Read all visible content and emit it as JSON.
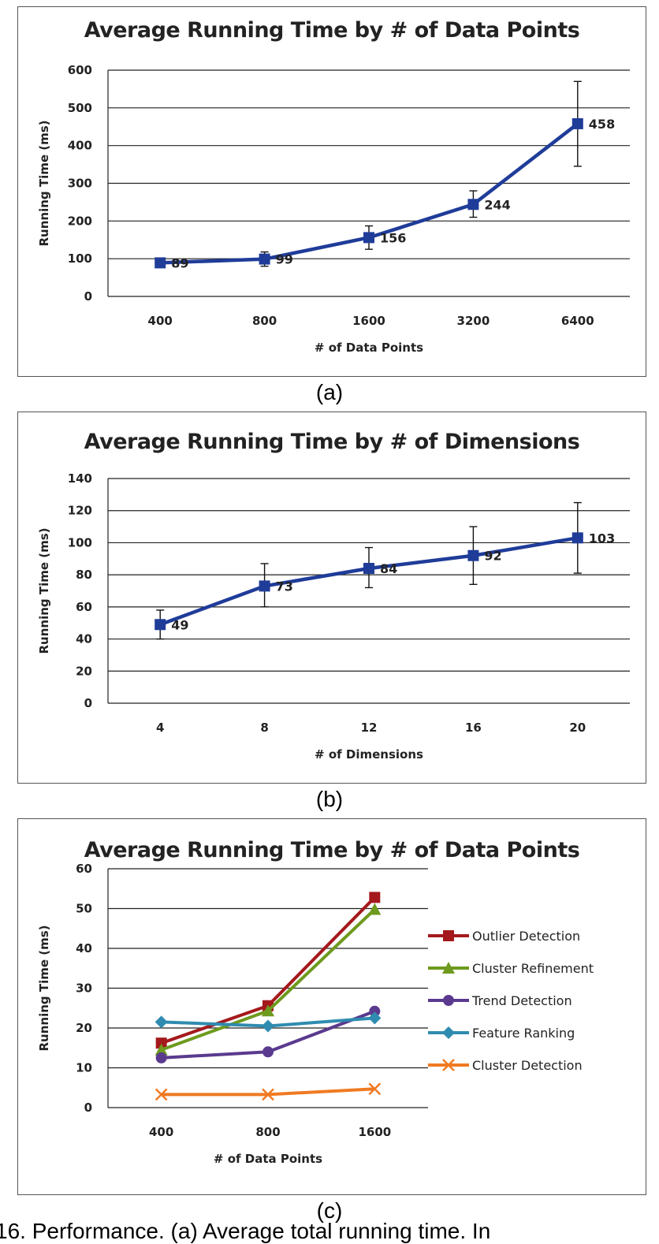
{
  "chart_data": [
    {
      "type": "line",
      "panel": "a",
      "title": "Average Running Time by # of Data Points",
      "xlabel": "# of Data Points",
      "ylabel": "Running Time (ms)",
      "categories": [
        "400",
        "800",
        "1600",
        "3200",
        "6400"
      ],
      "ylim": [
        0,
        600
      ],
      "yticks": [
        0,
        100,
        200,
        300,
        400,
        500,
        600
      ],
      "grid": true,
      "series": [
        {
          "values": [
            89,
            99,
            156,
            244,
            458
          ],
          "data_labels": [
            "89",
            "99",
            "156",
            "244",
            "458"
          ],
          "error_low": [
            80,
            80,
            125,
            210,
            345
          ],
          "error_high": [
            98,
            118,
            187,
            280,
            570
          ],
          "color": "#1F3C99",
          "marker": "square"
        }
      ]
    },
    {
      "type": "line",
      "panel": "b",
      "title": "Average Running Time by # of Dimensions",
      "xlabel": "# of Dimensions",
      "ylabel": "Running Time (ms)",
      "categories": [
        "4",
        "8",
        "12",
        "16",
        "20"
      ],
      "ylim": [
        0,
        140
      ],
      "yticks": [
        0,
        20,
        40,
        60,
        80,
        100,
        120,
        140
      ],
      "grid": true,
      "series": [
        {
          "values": [
            49,
            73,
            84,
            92,
            103
          ],
          "data_labels": [
            "49",
            "73",
            "84",
            "92",
            "103"
          ],
          "error_low": [
            40,
            60,
            72,
            74,
            81
          ],
          "error_high": [
            58,
            87,
            97,
            110,
            125
          ],
          "color": "#1F3C99",
          "marker": "square"
        }
      ]
    },
    {
      "type": "line",
      "panel": "c",
      "title": "Average Running Time by # of Data Points",
      "xlabel": "# of Data Points",
      "ylabel": "Running Time (ms)",
      "categories": [
        "400",
        "800",
        "1600"
      ],
      "ylim": [
        0,
        60
      ],
      "yticks": [
        0,
        10,
        20,
        30,
        40,
        50,
        60
      ],
      "grid": true,
      "legend": "right",
      "series": [
        {
          "name": "Outlier Detection",
          "values": [
            16.2,
            25.6,
            52.8
          ],
          "color": "#A4191C",
          "marker": "square"
        },
        {
          "name": "Cluster Refinement",
          "values": [
            14.5,
            24.3,
            49.8
          ],
          "color": "#6E9A1E",
          "marker": "triangle"
        },
        {
          "name": "Trend Detection",
          "values": [
            12.5,
            14.0,
            24.2
          ],
          "color": "#5A3A8E",
          "marker": "circle"
        },
        {
          "name": "Feature Ranking",
          "values": [
            21.5,
            20.5,
            22.5
          ],
          "color": "#2F8CB0",
          "marker": "diamond"
        },
        {
          "name": "Cluster Detection",
          "values": [
            3.3,
            3.3,
            4.7
          ],
          "color": "#F07A22",
          "marker": "x"
        }
      ]
    }
  ],
  "captions": {
    "a": "(a)",
    "b": "(b)",
    "c": "(c)",
    "footer": "16. Performance. (a) Average total running time. In"
  }
}
